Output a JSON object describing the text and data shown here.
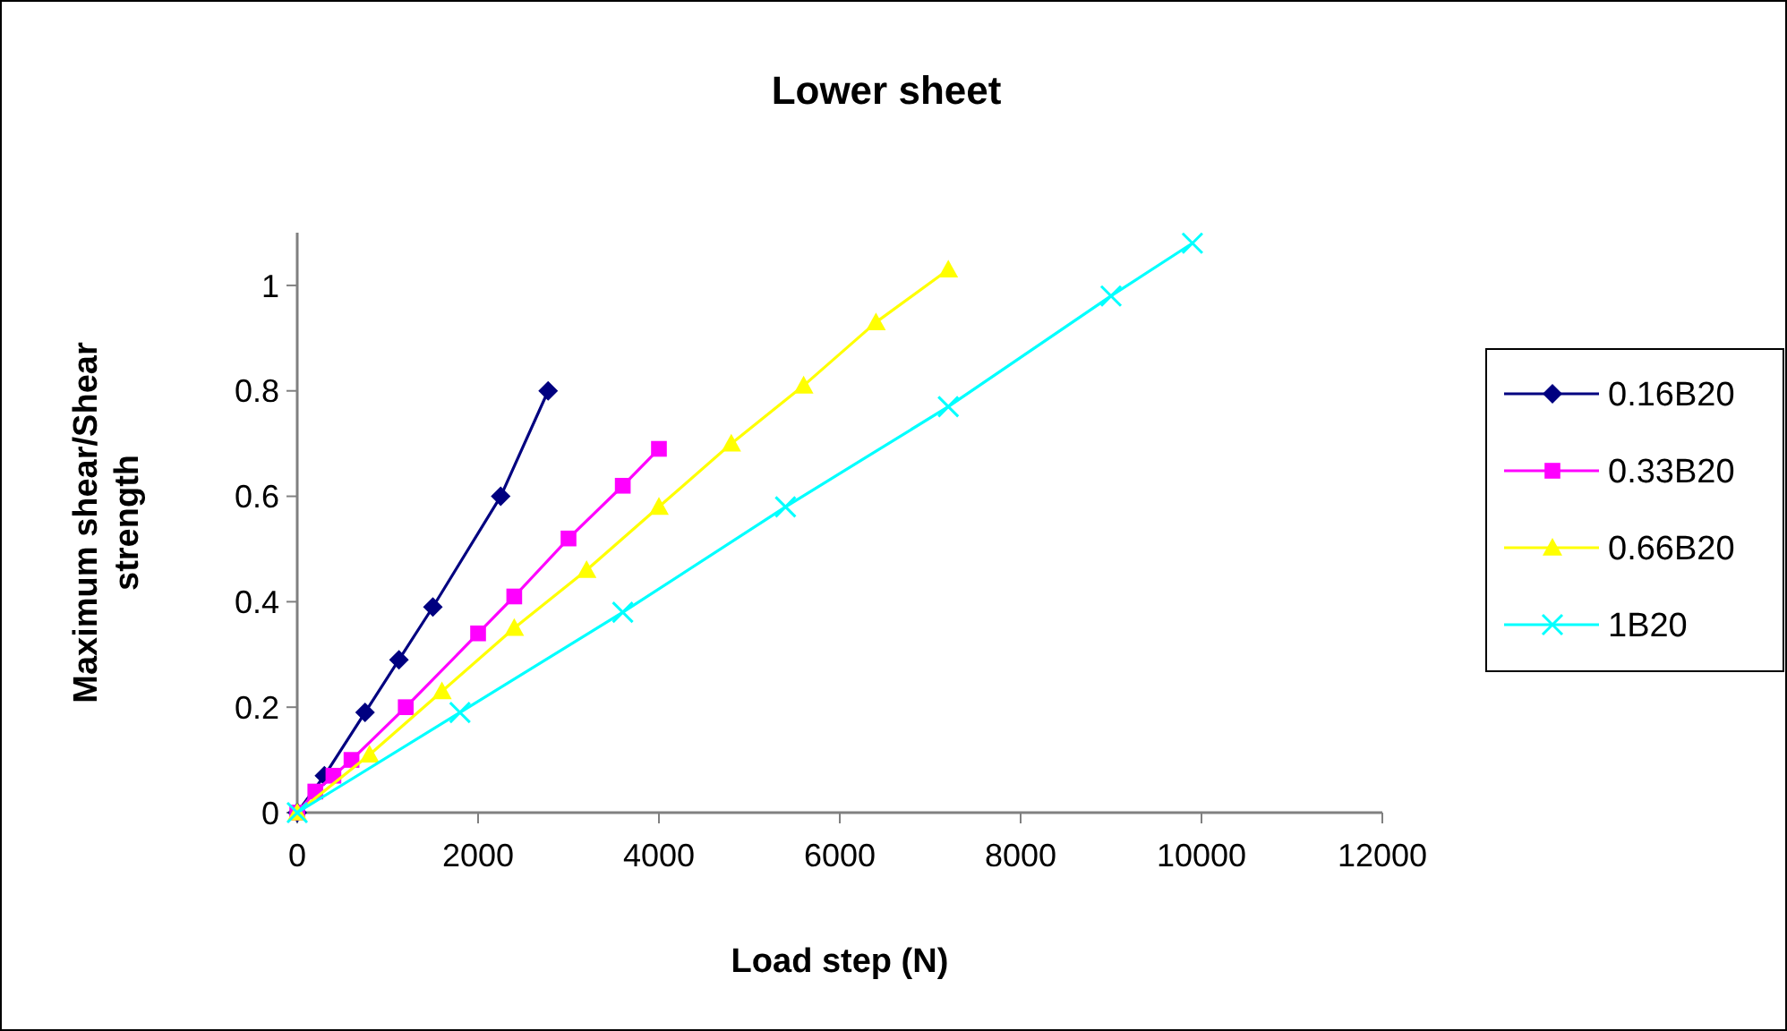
{
  "chart_data": {
    "type": "line",
    "title": "Lower sheet",
    "xlabel": "Load step (N)",
    "ylabel": "Maximum shear/Shear strength",
    "xlim": [
      0,
      12000
    ],
    "xticks": [
      0,
      2000,
      4000,
      6000,
      8000,
      10000,
      12000
    ],
    "ylim": [
      0,
      1.1
    ],
    "yticks": [
      0,
      0.2,
      0.4,
      0.6,
      0.8,
      1
    ],
    "grid": false,
    "legend": "right",
    "series": [
      {
        "name": "0.16B20",
        "color": "#000080",
        "marker": "diamond",
        "x": [
          0,
          300,
          750,
          1125,
          1500,
          2250,
          2775
        ],
        "values": [
          0,
          0.07,
          0.19,
          0.29,
          0.39,
          0.6,
          0.8
        ]
      },
      {
        "name": "0.33B20",
        "color": "#ff00ff",
        "marker": "square",
        "x": [
          0,
          200,
          400,
          600,
          1200,
          2000,
          2400,
          3000,
          3600,
          4000
        ],
        "values": [
          0,
          0.04,
          0.07,
          0.1,
          0.2,
          0.34,
          0.41,
          0.52,
          0.62,
          0.69
        ]
      },
      {
        "name": "0.66B20",
        "color": "#ffff00",
        "marker": "triangle",
        "x": [
          0,
          800,
          1600,
          2400,
          3200,
          4000,
          4800,
          5600,
          6400,
          7200
        ],
        "values": [
          0,
          0.11,
          0.23,
          0.35,
          0.46,
          0.58,
          0.7,
          0.81,
          0.93,
          1.03
        ]
      },
      {
        "name": "1B20",
        "color": "#00ffff",
        "marker": "cross",
        "x": [
          0,
          1800,
          3600,
          5400,
          7200,
          9000,
          9900
        ],
        "values": [
          0,
          0.19,
          0.38,
          0.58,
          0.77,
          0.98,
          1.08
        ]
      }
    ]
  }
}
